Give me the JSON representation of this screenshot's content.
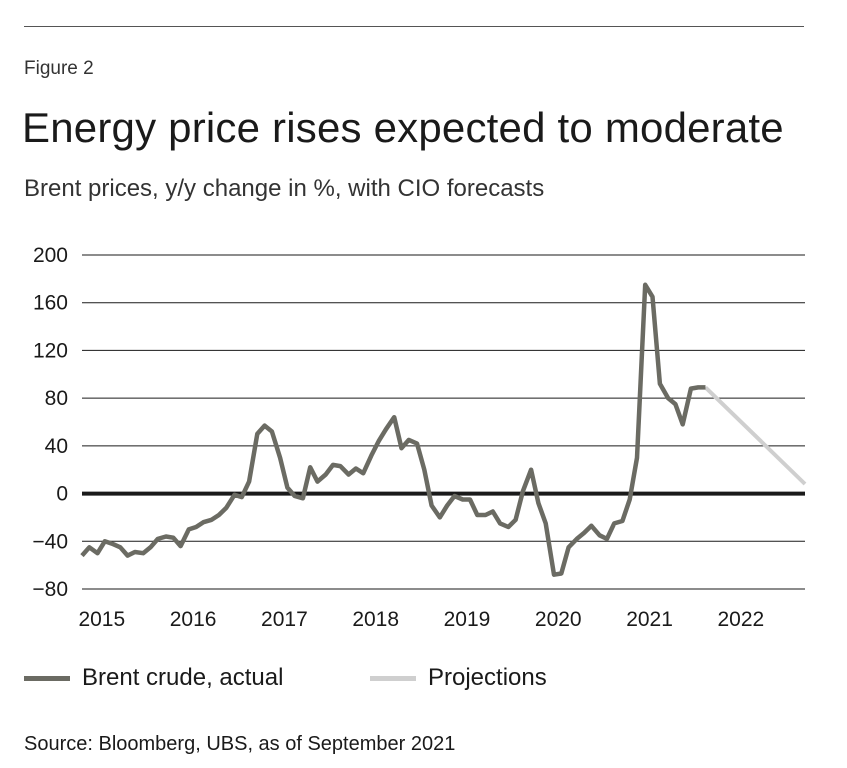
{
  "figure_label": "Figure 2",
  "title": "Energy price rises expected to moderate",
  "subtitle": "Brent prices, y/y change in %, with CIO forecasts",
  "source": "Source: Bloomberg, UBS, as of September 2021",
  "chart_data": {
    "type": "line",
    "title": "Energy price rises expected to moderate",
    "subtitle": "Brent prices, y/y change in %, with CIO forecasts",
    "xlabel": "",
    "ylabel": "",
    "ylim": [
      -80,
      200
    ],
    "xlim": [
      2014.75,
      2022.67
    ],
    "yticks": [
      200,
      160,
      120,
      80,
      40,
      0,
      -40,
      -80
    ],
    "xticks": [
      {
        "label": "2015",
        "x": 2015.0
      },
      {
        "label": "2016",
        "x": 2016.0
      },
      {
        "label": "2017",
        "x": 2017.0
      },
      {
        "label": "2018",
        "x": 2018.0
      },
      {
        "label": "2019",
        "x": 2019.0
      },
      {
        "label": "2020",
        "x": 2020.0
      },
      {
        "label": "2021",
        "x": 2021.0
      },
      {
        "label": "2022",
        "x": 2022.0
      }
    ],
    "grid": true,
    "legend_position": "bottom",
    "series": [
      {
        "name": "Brent crude, actual",
        "color": "#6b6b63",
        "x": [
          2014.75,
          2014.83,
          2014.92,
          2015.0,
          2015.08,
          2015.17,
          2015.25,
          2015.33,
          2015.42,
          2015.5,
          2015.58,
          2015.67,
          2015.75,
          2015.83,
          2015.92,
          2016.0,
          2016.08,
          2016.17,
          2016.25,
          2016.33,
          2016.42,
          2016.5,
          2016.58,
          2016.67,
          2016.75,
          2016.83,
          2016.92,
          2017.0,
          2017.08,
          2017.17,
          2017.25,
          2017.33,
          2017.42,
          2017.5,
          2017.58,
          2017.67,
          2017.75,
          2017.83,
          2017.92,
          2018.0,
          2018.08,
          2018.17,
          2018.25,
          2018.33,
          2018.42,
          2018.5,
          2018.58,
          2018.67,
          2018.75,
          2018.83,
          2018.92,
          2019.0,
          2019.08,
          2019.17,
          2019.25,
          2019.33,
          2019.42,
          2019.5,
          2019.58,
          2019.67,
          2019.75,
          2019.83,
          2019.92,
          2020.0,
          2020.08,
          2020.17,
          2020.25,
          2020.33,
          2020.42,
          2020.5,
          2020.58,
          2020.67,
          2020.75,
          2020.83,
          2020.92,
          2021.0,
          2021.08,
          2021.17,
          2021.25,
          2021.33,
          2021.42,
          2021.5,
          2021.58
        ],
        "values": [
          -52,
          -45,
          -50,
          -40,
          -42,
          -45,
          -52,
          -49,
          -50,
          -45,
          -38,
          -36,
          -37,
          -44,
          -30,
          -28,
          -24,
          -22,
          -18,
          -12,
          -1,
          -3,
          10,
          50,
          57,
          52,
          30,
          5,
          -2,
          -4,
          22,
          10,
          16,
          24,
          23,
          16,
          21,
          17,
          32,
          44,
          54,
          64,
          38,
          45,
          42,
          20,
          -10,
          -20,
          -10,
          -2,
          -5,
          -5,
          -18,
          -18,
          -15,
          -25,
          -28,
          -22,
          2,
          20,
          -8,
          -25,
          -68,
          -67,
          -45,
          -38,
          -33,
          -27,
          -35,
          -38,
          -25,
          -23,
          -5,
          30,
          175,
          165,
          92,
          80,
          75,
          58,
          88,
          89,
          89
        ]
      },
      {
        "name": "Projections",
        "color": "#cfcfcf",
        "x": [
          2021.58,
          2022.67
        ],
        "values": [
          89,
          8
        ]
      }
    ]
  },
  "legend": [
    {
      "label": "Brent crude, actual",
      "color": "#6b6b63"
    },
    {
      "label": "Projections",
      "color": "#cfcfcf"
    }
  ]
}
